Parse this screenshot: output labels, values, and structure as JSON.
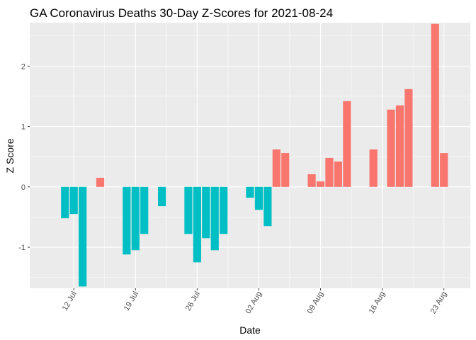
{
  "chart_data": {
    "type": "bar",
    "title": "GA Coronavirus Deaths 30-Day Z-Scores for 2021-08-24",
    "xlabel": "Date",
    "ylabel": "Z Score",
    "x_tick_labels": [
      "12 Jul",
      "19 Jul",
      "26 Jul",
      "02 Aug",
      "09 Aug",
      "16 Aug",
      "23 Aug"
    ],
    "y_tick_labels": [
      "-1",
      "0",
      "1",
      "2"
    ],
    "y_ticks": [
      -1,
      0,
      1,
      2
    ],
    "ylim": [
      -1.68,
      2.72
    ],
    "xlim": [
      "2021-07-07",
      "2021-08-26"
    ],
    "x_ticks": [
      "2021-07-12",
      "2021-07-19",
      "2021-07-26",
      "2021-08-02",
      "2021-08-09",
      "2021-08-16",
      "2021-08-23"
    ],
    "grid": true,
    "legend": "none",
    "colors": {
      "positive": "#F8766D",
      "negative": "#00BFC4",
      "panel": "#EBEBEB",
      "grid": "#FFFFFF"
    },
    "x": [
      "2021-07-11",
      "2021-07-12",
      "2021-07-13",
      "2021-07-15",
      "2021-07-18",
      "2021-07-19",
      "2021-07-20",
      "2021-07-22",
      "2021-07-25",
      "2021-07-26",
      "2021-07-27",
      "2021-07-28",
      "2021-07-29",
      "2021-08-01",
      "2021-08-02",
      "2021-08-03",
      "2021-08-04",
      "2021-08-05",
      "2021-08-08",
      "2021-08-09",
      "2021-08-10",
      "2021-08-11",
      "2021-08-12",
      "2021-08-15",
      "2021-08-17",
      "2021-08-18",
      "2021-08-19",
      "2021-08-22",
      "2021-08-23"
    ],
    "values": [
      -0.52,
      -0.45,
      -1.65,
      0.15,
      -1.12,
      -1.05,
      -0.78,
      -0.32,
      -0.78,
      -1.25,
      -0.85,
      -1.05,
      -0.78,
      -0.18,
      -0.38,
      -0.65,
      0.62,
      0.56,
      0.21,
      0.09,
      0.48,
      0.42,
      1.42,
      0.62,
      1.28,
      1.35,
      1.62,
      2.7,
      0.56
    ]
  }
}
